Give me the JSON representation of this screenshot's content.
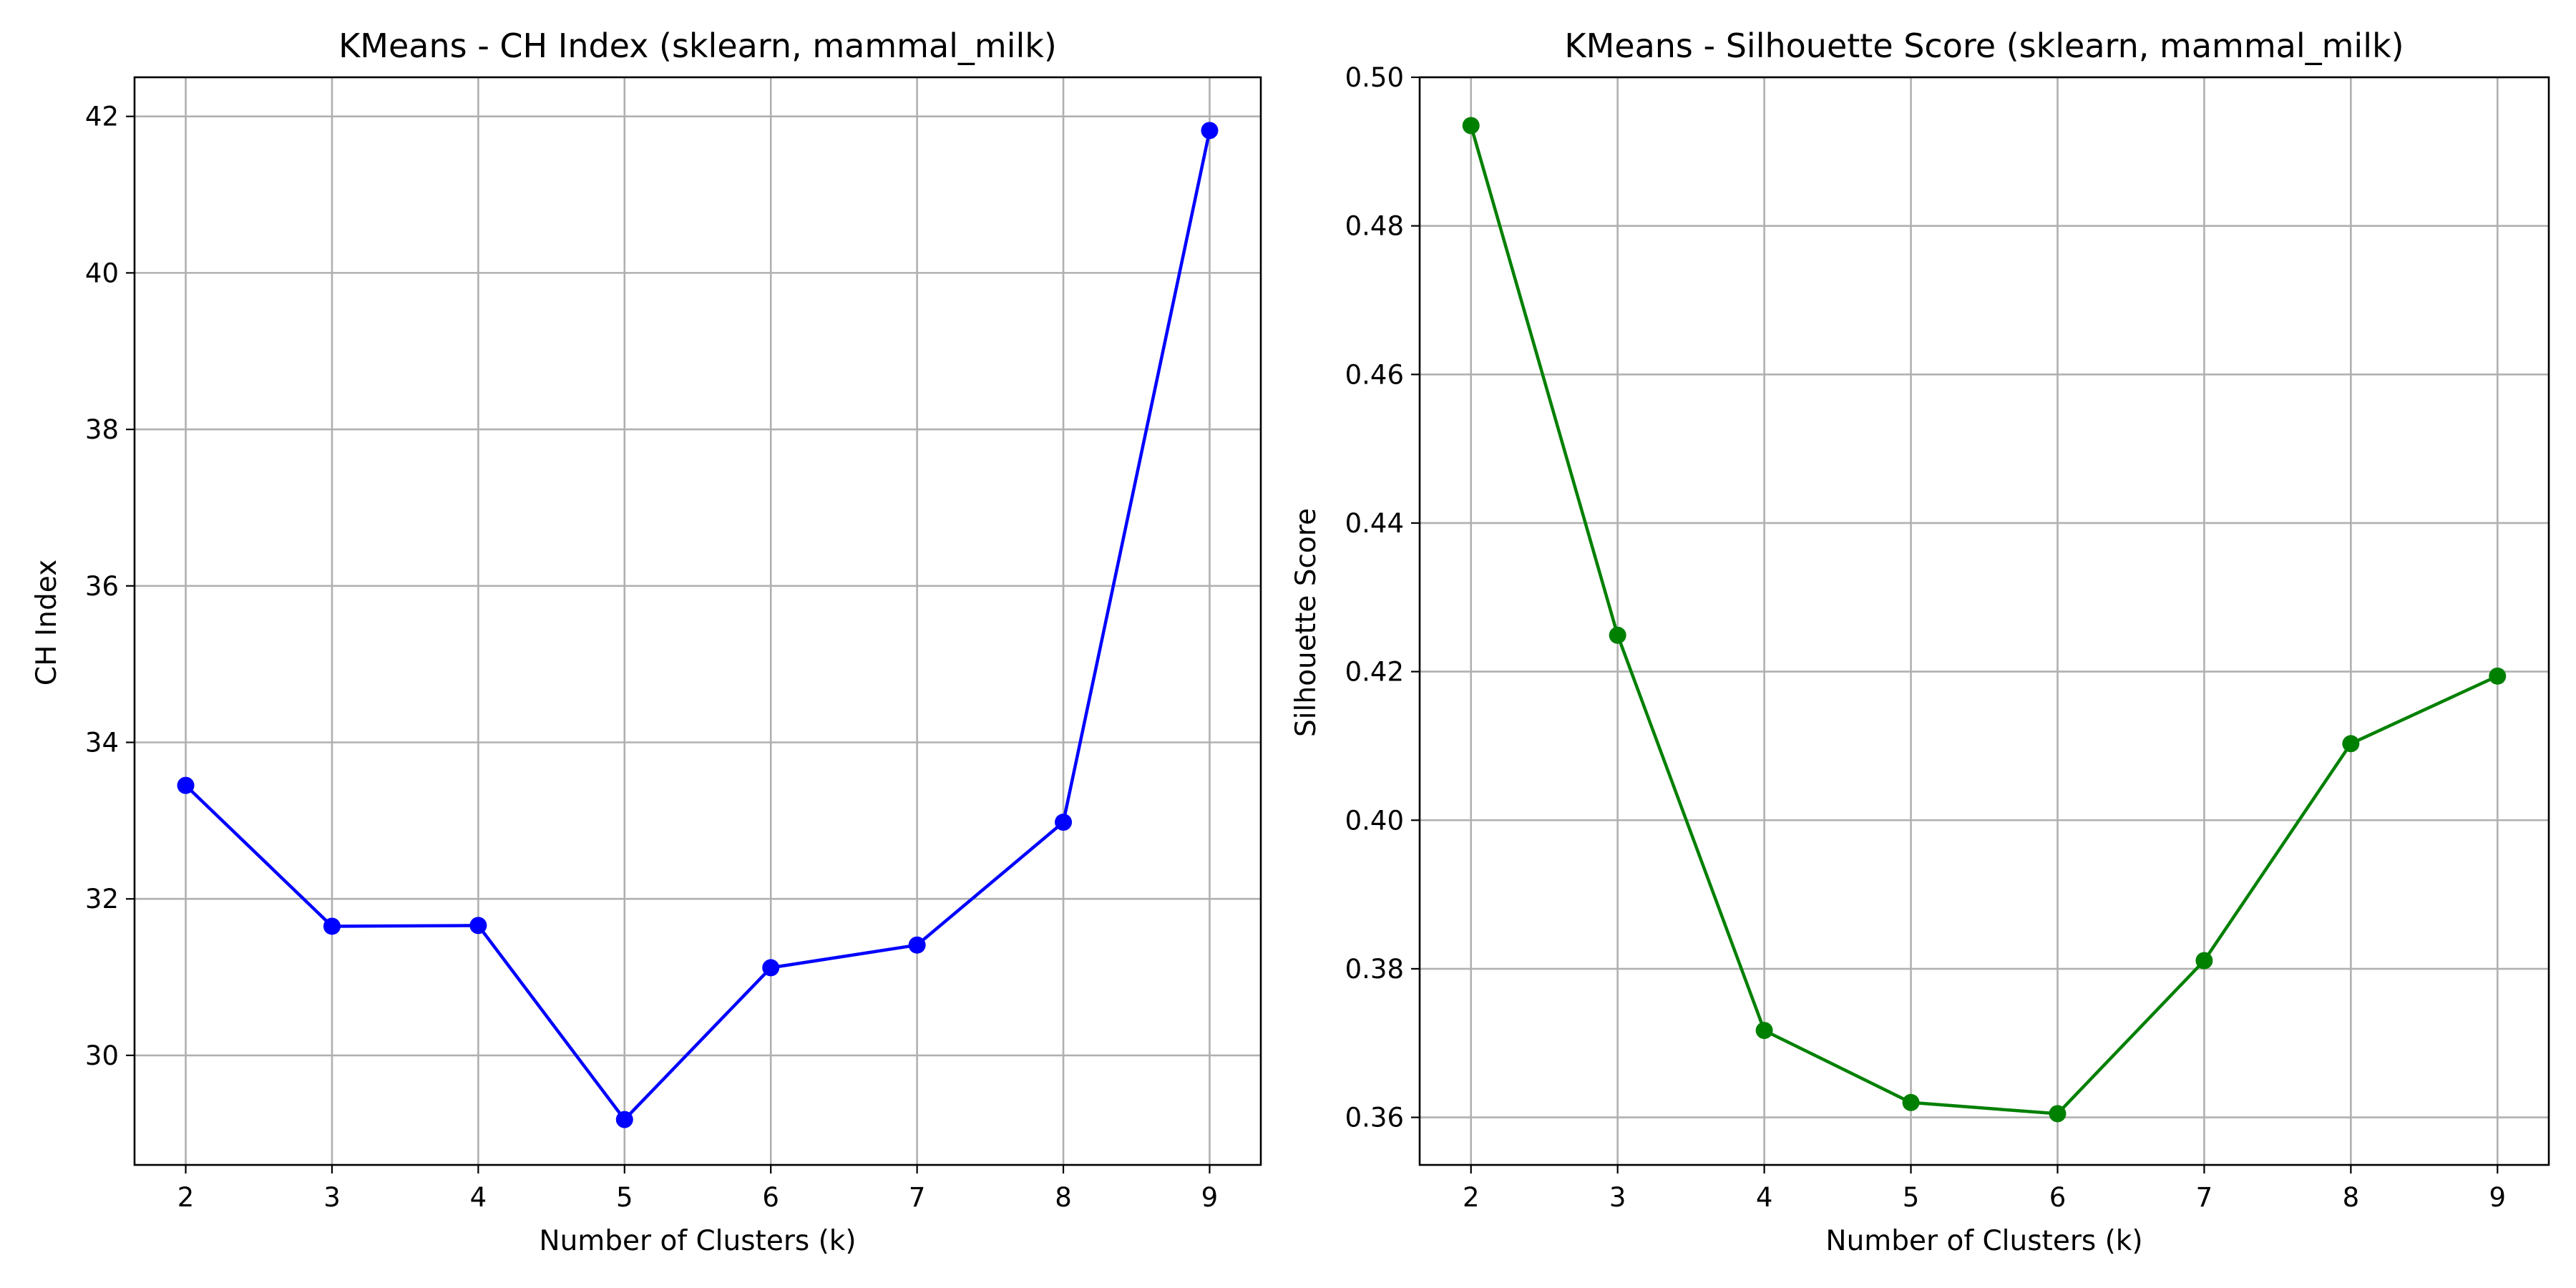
{
  "chart_data": [
    {
      "type": "line",
      "title": "KMeans - CH Index (sklearn, mammal_milk)",
      "xlabel": "Number of Clusters (k)",
      "ylabel": "CH Index",
      "x": [
        2,
        3,
        4,
        5,
        6,
        7,
        8,
        9
      ],
      "series": [
        {
          "values": [
            33.45,
            31.65,
            31.66,
            29.18,
            31.12,
            31.41,
            32.98,
            41.82
          ],
          "color": "#0000ff",
          "marker": "circle"
        }
      ],
      "xticks": [
        2,
        3,
        4,
        5,
        6,
        7,
        8,
        9
      ],
      "yticks": [
        30,
        32,
        34,
        36,
        38,
        40,
        42
      ],
      "ytick_labels": [
        "30",
        "32",
        "34",
        "36",
        "38",
        "40",
        "42"
      ],
      "xlim": [
        1.65,
        9.35
      ],
      "ylim": [
        28.6,
        42.5
      ],
      "grid": true,
      "legend": false
    },
    {
      "type": "line",
      "title": "KMeans - Silhouette Score (sklearn, mammal_milk)",
      "xlabel": "Number of Clusters (k)",
      "ylabel": "Silhouette Score",
      "x": [
        2,
        3,
        4,
        5,
        6,
        7,
        8,
        9
      ],
      "series": [
        {
          "values": [
            0.4935,
            0.4249,
            0.3717,
            0.362,
            0.3605,
            0.3811,
            0.4103,
            0.4194
          ],
          "color": "#008000",
          "marker": "circle"
        }
      ],
      "xticks": [
        2,
        3,
        4,
        5,
        6,
        7,
        8,
        9
      ],
      "yticks": [
        0.36,
        0.38,
        0.4,
        0.42,
        0.44,
        0.46,
        0.48,
        0.5
      ],
      "ytick_labels": [
        "0.36",
        "0.38",
        "0.40",
        "0.42",
        "0.44",
        "0.46",
        "0.48",
        "0.50"
      ],
      "xlim": [
        1.65,
        9.35
      ],
      "ylim": [
        0.3536,
        0.5
      ],
      "grid": true,
      "legend": false
    }
  ]
}
